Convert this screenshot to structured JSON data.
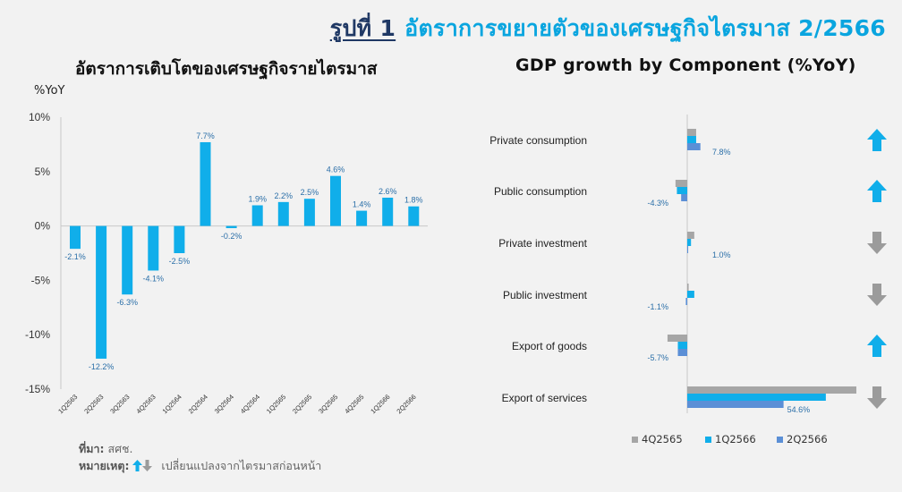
{
  "header": {
    "figure_no": "รูปที่ 1",
    "figure_title": "อัตราการขยายตัวของเศรษฐกิจไตรมาส 2/2566"
  },
  "colors": {
    "bar": "#10aeea",
    "arrow": "#10aeea",
    "arrow_down": "#9b9b9b",
    "s1": "#a6a6a6",
    "s2": "#10aeea",
    "s3": "#5b8fd6"
  },
  "chart_data": [
    {
      "type": "bar",
      "title": "อัตราการเติบโตของเศรษฐกิจรายไตรมาส",
      "ylabel": "%YoY",
      "ylim": [
        -15,
        10
      ],
      "yticks": [
        "10%",
        "5%",
        "0%",
        "-5%",
        "-10%",
        "-15%"
      ],
      "categories": [
        "1Q2563",
        "2Q2563",
        "3Q2563",
        "4Q2563",
        "1Q2564",
        "2Q2564",
        "3Q2564",
        "4Q2564",
        "1Q2565",
        "2Q2565",
        "3Q2565",
        "4Q2565",
        "1Q2566",
        "2Q2566"
      ],
      "values": [
        -2.1,
        -12.2,
        -6.3,
        -4.1,
        -2.5,
        7.7,
        -0.2,
        1.9,
        2.2,
        2.5,
        4.6,
        1.4,
        2.6,
        1.8
      ],
      "data_labels": [
        "-2.1%",
        "-12.2%",
        "-6.3%",
        "-4.1%",
        "-2.5%",
        "7.7%",
        "-0.2%",
        "1.9%",
        "2.2%",
        "2.5%",
        "4.6%",
        "1.4%",
        "2.6%",
        "1.8%"
      ]
    },
    {
      "type": "bar",
      "orientation": "horizontal",
      "title": "GDP growth by Component  (%YoY)",
      "categories": [
        "Private consumption",
        "Public consumption",
        "Private investment",
        "Public investment",
        "Export of goods",
        "Export of services"
      ],
      "series": [
        {
          "name": "4Q2565",
          "values": [
            1.9,
            -2.5,
            1.5,
            0.3,
            -4.2,
            36.0
          ]
        },
        {
          "name": "1Q2566",
          "values": [
            1.9,
            -2.2,
            0.8,
            1.5,
            -2.0,
            29.5
          ]
        },
        {
          "name": "2Q2566",
          "values": [
            2.8,
            -1.3,
            0.2,
            -0.3,
            -2.0,
            20.5
          ]
        }
      ],
      "data_labels": [
        "7.8%",
        "-4.3%",
        "1.0%",
        "-1.1%",
        "-5.7%",
        "54.6%"
      ],
      "trend": [
        "up",
        "up",
        "down",
        "down",
        "up",
        "down"
      ]
    }
  ],
  "footer": {
    "source_label": "ที่มา:",
    "source": "สศช.",
    "note_label": "หมายเหตุ:",
    "note": "เปลี่ยนแปลงจากไตรมาสก่อนหน้า"
  }
}
